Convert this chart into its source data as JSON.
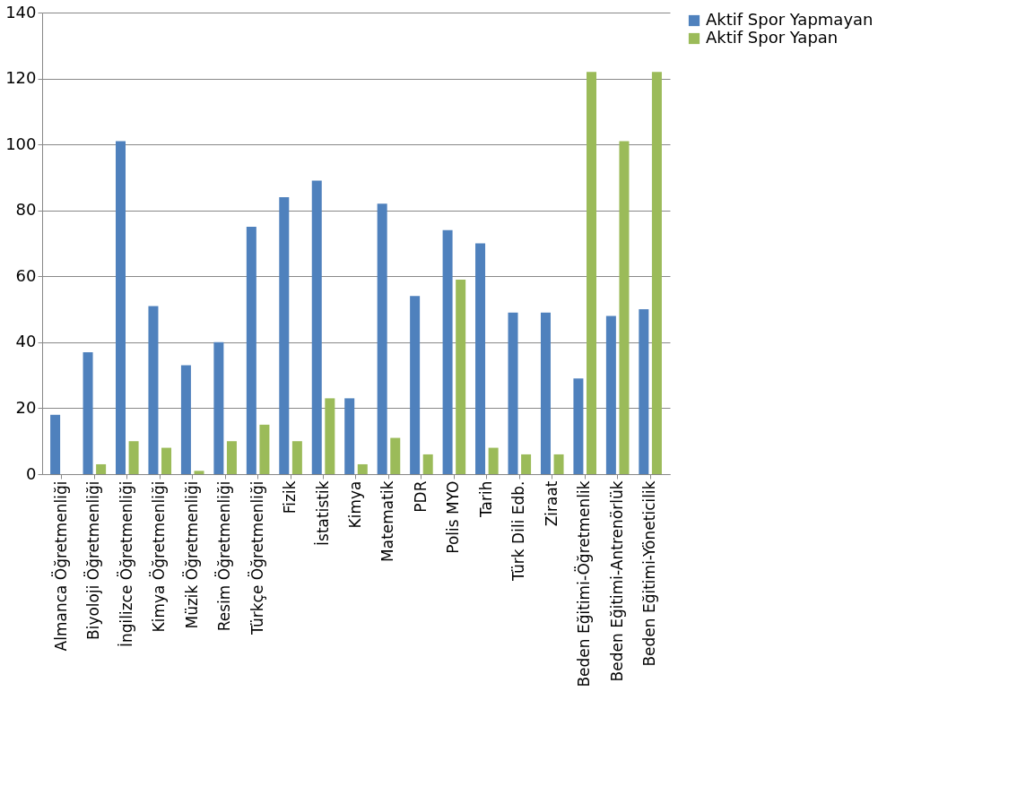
{
  "chart_data": {
    "type": "bar",
    "categories": [
      "Almanca Öğretmenliği",
      "Biyoloji Öğretmenliği",
      "İngilizce Öğretmenliği",
      "Kimya Öğretmenliği",
      "Müzik Öğretmenliği",
      "Resim Öğretmenliği",
      "Türkçe Öğretmenliği",
      "Fizik",
      "İstatistik",
      "Kimya",
      "Matematik",
      "PDR",
      "Polis MYO",
      "Tarih",
      "Türk Dili Edb.",
      "Ziraat",
      "Beden Eğitimi-Öğretmenlik",
      "Beden Eğitimi-Antrenörlük",
      "Beden Eğitimi-Yöneticilik"
    ],
    "series": [
      {
        "name": "Aktif Spor Yapmayan",
        "color": "#4f81bd",
        "values": [
          18,
          37,
          101,
          51,
          33,
          40,
          75,
          84,
          89,
          23,
          82,
          54,
          74,
          70,
          49,
          49,
          29,
          48,
          50
        ]
      },
      {
        "name": "Aktif Spor Yapan",
        "color": "#9bbb59",
        "values": [
          0,
          3,
          10,
          8,
          1,
          10,
          15,
          10,
          23,
          3,
          11,
          6,
          59,
          8,
          6,
          6,
          122,
          101,
          122
        ]
      }
    ],
    "ylim": [
      0,
      140
    ],
    "yticks": [
      0,
      20,
      40,
      60,
      80,
      100,
      120,
      140
    ],
    "grid": "y",
    "legend": "right"
  }
}
